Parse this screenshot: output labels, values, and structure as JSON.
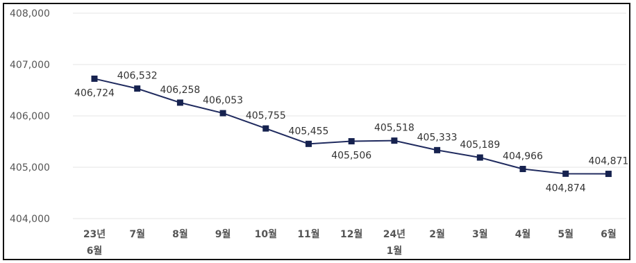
{
  "chart_data": {
    "type": "line",
    "categories": [
      [
        "23년",
        "6월"
      ],
      [
        "7월"
      ],
      [
        "8월"
      ],
      [
        "9월"
      ],
      [
        "10월"
      ],
      [
        "11월"
      ],
      [
        "12월"
      ],
      [
        "24년",
        "1월"
      ],
      [
        "2월"
      ],
      [
        "3월"
      ],
      [
        "4월"
      ],
      [
        "5월"
      ],
      [
        "6월"
      ]
    ],
    "values": [
      406724,
      406532,
      406258,
      406053,
      405755,
      405455,
      405506,
      405518,
      405333,
      405189,
      404966,
      404874,
      404871
    ],
    "value_labels": [
      "406,724",
      "406,532",
      "406,258",
      "406,053",
      "405,755",
      "405,455",
      "405,506",
      "405,518",
      "405,333",
      "405,189",
      "404,966",
      "404,874",
      "404,871"
    ],
    "label_pos": [
      "below",
      "above",
      "above",
      "above",
      "above",
      "above",
      "below",
      "above",
      "above",
      "above",
      "above",
      "below",
      "above"
    ],
    "y_ticks": [
      "404,000",
      "405,000",
      "406,000",
      "407,000",
      "408,000"
    ],
    "ylim": [
      404000,
      408000
    ],
    "grid": true,
    "line_color": "#1f2a5e",
    "marker_color": "#16224f",
    "grid_color": "#e6e6e6"
  }
}
